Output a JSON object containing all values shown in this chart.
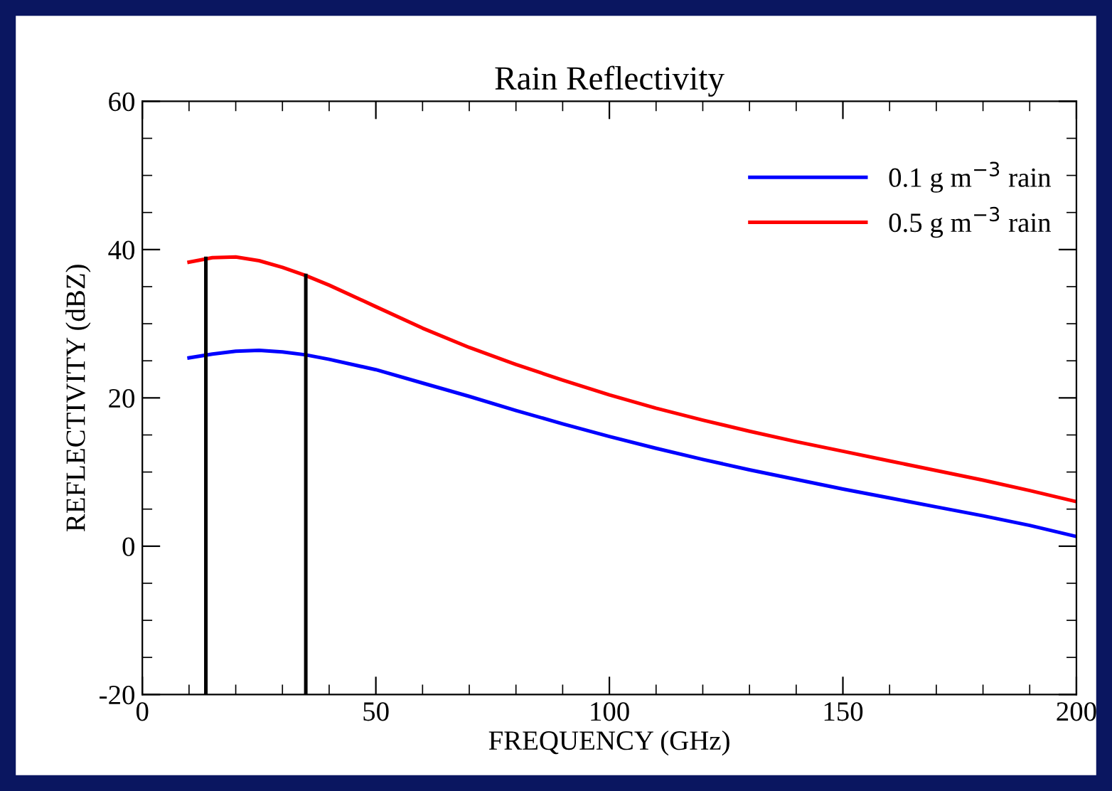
{
  "chart_data": {
    "type": "line",
    "title": "Rain Reflectivity",
    "xlabel": "FREQUENCY (GHz)",
    "ylabel": "REFLECTIVITY (dBZ)",
    "xlim": [
      0,
      200
    ],
    "xticks": [
      0,
      50,
      100,
      150,
      200
    ],
    "ylim": [
      -20,
      60
    ],
    "yticks": [
      -20,
      0,
      20,
      40,
      60
    ],
    "grid": false,
    "legend": "top right",
    "marker": "none",
    "line_style": "solid",
    "series": [
      {
        "name": "0.1 g m$^{−3}$ rain",
        "color": "#0000ff",
        "x": [
          10,
          15,
          20,
          25,
          30,
          35,
          40,
          50,
          60,
          70,
          80,
          90,
          100,
          110,
          120,
          130,
          140,
          150,
          160,
          170,
          180,
          190,
          200
        ],
        "values": [
          25.4,
          25.9,
          26.3,
          26.4,
          26.2,
          25.8,
          25.2,
          23.8,
          22,
          20.2,
          18.3,
          16.5,
          14.8,
          13.2,
          11.7,
          10.3,
          9,
          7.7,
          6.5,
          5.3,
          4.1,
          2.8,
          1.3
        ]
      },
      {
        "name": "0.5 g m$^{−3}$ rain",
        "color": "#ff0000",
        "x": [
          10,
          15,
          20,
          25,
          30,
          35,
          40,
          50,
          60,
          70,
          80,
          90,
          100,
          110,
          120,
          130,
          140,
          150,
          160,
          170,
          180,
          190,
          200
        ],
        "values": [
          38.3,
          38.9,
          39.0,
          38.5,
          37.6,
          36.5,
          35.2,
          32.3,
          29.4,
          26.8,
          24.5,
          22.4,
          20.4,
          18.6,
          17,
          15.5,
          14.1,
          12.8,
          11.5,
          10.2,
          8.9,
          7.5,
          6.0
        ]
      },
      {
        "color": "#000000",
        "x": [
          13.6,
          13.6
        ],
        "values": [
          -20,
          38.8
        ]
      },
      {
        "color": "#000000",
        "x": [
          35,
          35
        ],
        "values": [
          -20,
          36.5
        ]
      }
    ]
  }
}
